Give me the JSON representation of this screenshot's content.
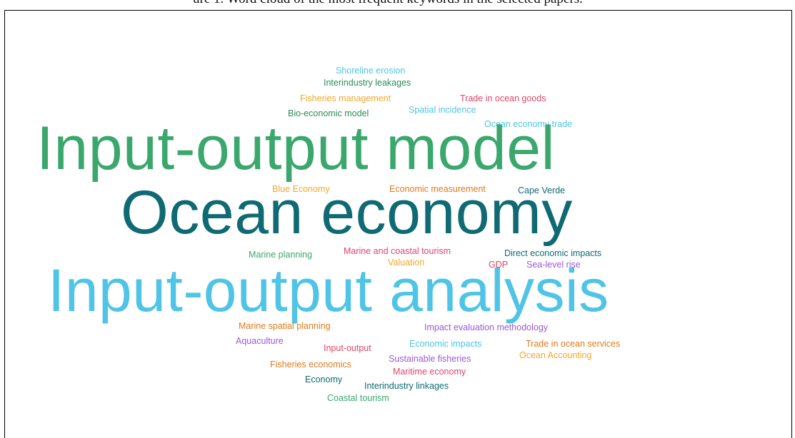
{
  "caption": "ure 1. Word cloud of the most frequent keywords in the selected papers.",
  "colors": {
    "green": "#3aa76d",
    "teal": "#0f6a73",
    "light_blue": "#4fc4e6",
    "orange": "#e07b1a",
    "yellow": "#f1a82c",
    "red": "#e1456a",
    "purple": "#9b59d6",
    "dark_green": "#2e8b57"
  },
  "words": {
    "w01": "Shoreline erosion",
    "w02": "Interindustry leakages",
    "w03": "Fisheries management",
    "w04": "Trade in ocean goods",
    "w05": "Spatial incidence",
    "w06": "Bio-economic model",
    "w07": "Ocean economy trade",
    "w08": "Input-output model",
    "w09": "Blue Economy",
    "w10": "Economic measurement",
    "w11": "Cape Verde",
    "w12": "Ocean economy",
    "w13": "Marine planning",
    "w14": "Marine and coastal tourism",
    "w15": "Direct economic impacts",
    "w16": "Valuation",
    "w17": "GDP",
    "w18": "Sea-level rise",
    "w19": "Input-output analysis",
    "w20": "Marine spatial planning",
    "w21": "Impact evaluation methodology",
    "w22": "Aquaculture",
    "w23": "Economic impacts",
    "w24": "Trade in ocean services",
    "w25": "Input-output",
    "w26": "Ocean Accounting",
    "w27": "Sustainable fisheries",
    "w28": "Fisheries economics",
    "w29": "Maritime economy",
    "w30": "Economy",
    "w31": "Interindustry linkages",
    "w32": "Coastal tourism"
  }
}
